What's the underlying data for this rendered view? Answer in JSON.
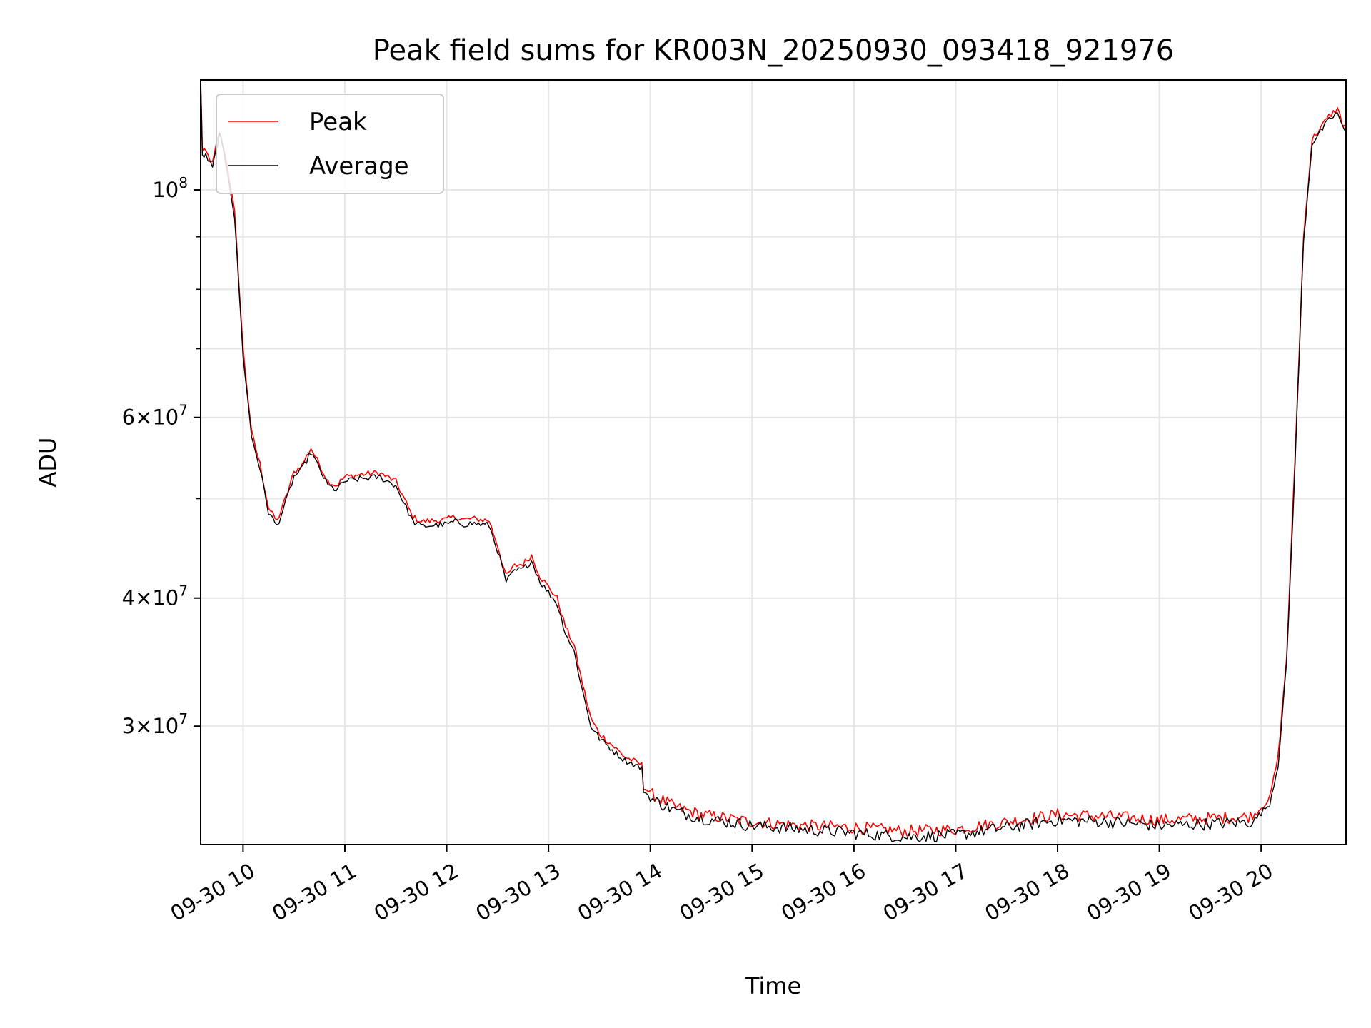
{
  "chart_data": {
    "type": "line",
    "title": "Peak field sums for KR003N_20250930_093418_921976",
    "xlabel": "Time",
    "ylabel": "ADU",
    "yscale": "log",
    "xlim": [
      "2025-09-30 09:35",
      "2025-09-30 20:50"
    ],
    "ylim": [
      23000000,
      128000000
    ],
    "grid": true,
    "legend_position": "top-left",
    "x_ticks": [
      {
        "x": "2025-09-30 10:00",
        "label": "09-30 10"
      },
      {
        "x": "2025-09-30 11:00",
        "label": "09-30 11"
      },
      {
        "x": "2025-09-30 12:00",
        "label": "09-30 12"
      },
      {
        "x": "2025-09-30 13:00",
        "label": "09-30 13"
      },
      {
        "x": "2025-09-30 14:00",
        "label": "09-30 14"
      },
      {
        "x": "2025-09-30 15:00",
        "label": "09-30 15"
      },
      {
        "x": "2025-09-30 16:00",
        "label": "09-30 16"
      },
      {
        "x": "2025-09-30 17:00",
        "label": "09-30 17"
      },
      {
        "x": "2025-09-30 18:00",
        "label": "09-30 18"
      },
      {
        "x": "2025-09-30 19:00",
        "label": "09-30 19"
      },
      {
        "x": "2025-09-30 20:00",
        "label": "09-30 20"
      }
    ],
    "y_ticks_labeled": [
      {
        "value": 30000000,
        "base": "3",
        "exp": "7"
      },
      {
        "value": 40000000,
        "base": "4",
        "exp": "7"
      },
      {
        "value": 60000000,
        "base": "6",
        "exp": "7"
      },
      {
        "value": 100000000,
        "base": "",
        "exp": "8"
      }
    ],
    "y_ticks_minor": [
      50000000,
      70000000,
      80000000,
      90000000
    ],
    "series": [
      {
        "name": "Peak",
        "color": "#ff0000",
        "x": [
          "2025-09-30 09:35",
          "2025-09-30 09:36",
          "2025-09-30 09:38",
          "2025-09-30 09:42",
          "2025-09-30 09:44",
          "2025-09-30 09:46",
          "2025-09-30 09:48",
          "2025-09-30 09:51",
          "2025-09-30 09:55",
          "2025-09-30 10:00",
          "2025-09-30 10:05",
          "2025-09-30 10:10",
          "2025-09-30 10:15",
          "2025-09-30 10:20",
          "2025-09-30 10:25",
          "2025-09-30 10:30",
          "2025-09-30 10:35",
          "2025-09-30 10:40",
          "2025-09-30 10:45",
          "2025-09-30 10:50",
          "2025-09-30 10:55",
          "2025-09-30 11:00",
          "2025-09-30 11:10",
          "2025-09-30 11:20",
          "2025-09-30 11:30",
          "2025-09-30 11:40",
          "2025-09-30 11:45",
          "2025-09-30 12:00",
          "2025-09-30 12:05",
          "2025-09-30 12:10",
          "2025-09-30 12:15",
          "2025-09-30 12:25",
          "2025-09-30 12:30",
          "2025-09-30 12:35",
          "2025-09-30 12:40",
          "2025-09-30 12:45",
          "2025-09-30 12:50",
          "2025-09-30 12:55",
          "2025-09-30 13:00",
          "2025-09-30 13:05",
          "2025-09-30 13:10",
          "2025-09-30 13:15",
          "2025-09-30 13:20",
          "2025-09-30 13:25",
          "2025-09-30 13:30",
          "2025-09-30 13:35",
          "2025-09-30 13:40",
          "2025-09-30 13:45",
          "2025-09-30 13:55",
          "2025-09-30 13:56",
          "2025-09-30 14:00",
          "2025-09-30 14:15",
          "2025-09-30 14:30",
          "2025-09-30 15:00",
          "2025-09-30 15:30",
          "2025-09-30 16:00",
          "2025-09-30 16:30",
          "2025-09-30 17:00",
          "2025-09-30 17:30",
          "2025-09-30 18:00",
          "2025-09-30 18:30",
          "2025-09-30 19:00",
          "2025-09-30 19:30",
          "2025-09-30 19:55",
          "2025-09-30 20:05",
          "2025-09-30 20:10",
          "2025-09-30 20:15",
          "2025-09-30 20:20",
          "2025-09-30 20:25",
          "2025-09-30 20:30",
          "2025-09-30 20:35",
          "2025-09-30 20:40",
          "2025-09-30 20:45",
          "2025-09-30 20:48",
          "2025-09-30 20:50"
        ],
        "y": [
          130000000,
          109000000,
          109000000,
          106000000,
          110000000,
          114000000,
          111000000,
          105000000,
          95000000,
          70000000,
          58000000,
          54000000,
          49000000,
          47500000,
          50000000,
          53000000,
          54000000,
          56000000,
          54000000,
          52000000,
          51500000,
          52500000,
          52800000,
          53000000,
          52000000,
          48000000,
          47500000,
          47700000,
          48000000,
          47700000,
          47800000,
          47600000,
          45000000,
          42000000,
          43000000,
          43200000,
          44000000,
          42000000,
          41000000,
          40000000,
          37500000,
          36000000,
          33000000,
          30500000,
          29500000,
          29000000,
          28500000,
          28000000,
          27500000,
          26200000,
          25800000,
          25000000,
          24600000,
          24200000,
          24000000,
          23900000,
          23700000,
          23800000,
          24200000,
          24600000,
          24500000,
          24300000,
          24400000,
          24500000,
          25500000,
          28000000,
          35000000,
          55000000,
          90000000,
          112000000,
          115000000,
          118000000,
          120000000,
          116000000,
          115000000
        ]
      },
      {
        "name": "Average",
        "color": "#000000",
        "x": [
          "2025-09-30 09:35",
          "2025-09-30 09:36",
          "2025-09-30 09:38",
          "2025-09-30 09:42",
          "2025-09-30 09:44",
          "2025-09-30 09:46",
          "2025-09-30 09:48",
          "2025-09-30 09:51",
          "2025-09-30 09:55",
          "2025-09-30 10:00",
          "2025-09-30 10:05",
          "2025-09-30 10:10",
          "2025-09-30 10:15",
          "2025-09-30 10:20",
          "2025-09-30 10:25",
          "2025-09-30 10:30",
          "2025-09-30 10:35",
          "2025-09-30 10:40",
          "2025-09-30 10:45",
          "2025-09-30 10:50",
          "2025-09-30 10:55",
          "2025-09-30 11:00",
          "2025-09-30 11:10",
          "2025-09-30 11:20",
          "2025-09-30 11:30",
          "2025-09-30 11:40",
          "2025-09-30 11:45",
          "2025-09-30 12:00",
          "2025-09-30 12:05",
          "2025-09-30 12:10",
          "2025-09-30 12:15",
          "2025-09-30 12:25",
          "2025-09-30 12:30",
          "2025-09-30 12:35",
          "2025-09-30 12:40",
          "2025-09-30 12:45",
          "2025-09-30 12:50",
          "2025-09-30 12:55",
          "2025-09-30 13:00",
          "2025-09-30 13:05",
          "2025-09-30 13:10",
          "2025-09-30 13:15",
          "2025-09-30 13:20",
          "2025-09-30 13:25",
          "2025-09-30 13:30",
          "2025-09-30 13:35",
          "2025-09-30 13:40",
          "2025-09-30 13:45",
          "2025-09-30 13:55",
          "2025-09-30 13:56",
          "2025-09-30 14:00",
          "2025-09-30 14:15",
          "2025-09-30 14:30",
          "2025-09-30 15:00",
          "2025-09-30 15:30",
          "2025-09-30 16:00",
          "2025-09-30 16:30",
          "2025-09-30 17:00",
          "2025-09-30 17:30",
          "2025-09-30 18:00",
          "2025-09-30 18:30",
          "2025-09-30 19:00",
          "2025-09-30 19:30",
          "2025-09-30 19:55",
          "2025-09-30 20:05",
          "2025-09-30 20:10",
          "2025-09-30 20:15",
          "2025-09-30 20:20",
          "2025-09-30 20:25",
          "2025-09-30 20:30",
          "2025-09-30 20:35",
          "2025-09-30 20:40",
          "2025-09-30 20:45",
          "2025-09-30 20:48",
          "2025-09-30 20:50"
        ],
        "y": [
          128000000,
          108000000,
          108000000,
          105000000,
          109000000,
          113000000,
          110000000,
          104000000,
          94000000,
          69000000,
          57500000,
          53500000,
          48500000,
          47000000,
          49500000,
          52500000,
          53500000,
          55500000,
          53500000,
          51500000,
          51000000,
          52000000,
          52300000,
          52500000,
          51500000,
          47500000,
          47000000,
          47200000,
          47500000,
          47200000,
          47300000,
          47100000,
          44500000,
          41500000,
          42500000,
          42700000,
          43500000,
          41500000,
          40500000,
          39500000,
          37000000,
          35500000,
          32500000,
          30000000,
          29200000,
          28700000,
          28200000,
          27800000,
          27300000,
          26000000,
          25500000,
          24800000,
          24400000,
          24000000,
          23800000,
          23600000,
          23400000,
          23500000,
          23900000,
          24300000,
          24200000,
          24000000,
          24100000,
          24200000,
          25200000,
          27500000,
          34500000,
          54000000,
          89000000,
          111000000,
          114000000,
          117000000,
          119000000,
          115000000,
          114000000
        ]
      }
    ]
  }
}
